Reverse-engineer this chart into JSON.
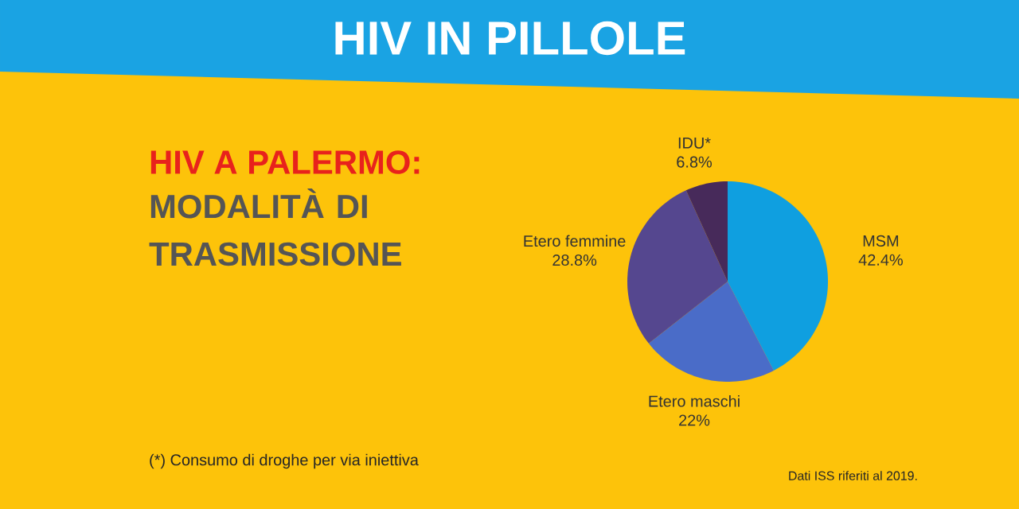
{
  "chart_data": {
    "type": "pie",
    "title": "HIV IN PILLOLE",
    "subtitle": "HIV A PALERMO:",
    "categories": [
      "MSM",
      "Etero maschi",
      "Etero femmine",
      "IDU*"
    ],
    "values": [
      42.4,
      22,
      28.8,
      6.8
    ],
    "value_labels": [
      "42.4%",
      "22%",
      "28.8%",
      "6.8%"
    ],
    "colors": [
      "#0f9fe0",
      "#4a6cc8",
      "#55478f",
      "#472a5a"
    ],
    "annotations": [
      "MODALITÀ DI TRASMISSIONE",
      "(*) Consumo di droghe per via iniettiva",
      "Dati ISS riferiti al 2019."
    ]
  }
}
